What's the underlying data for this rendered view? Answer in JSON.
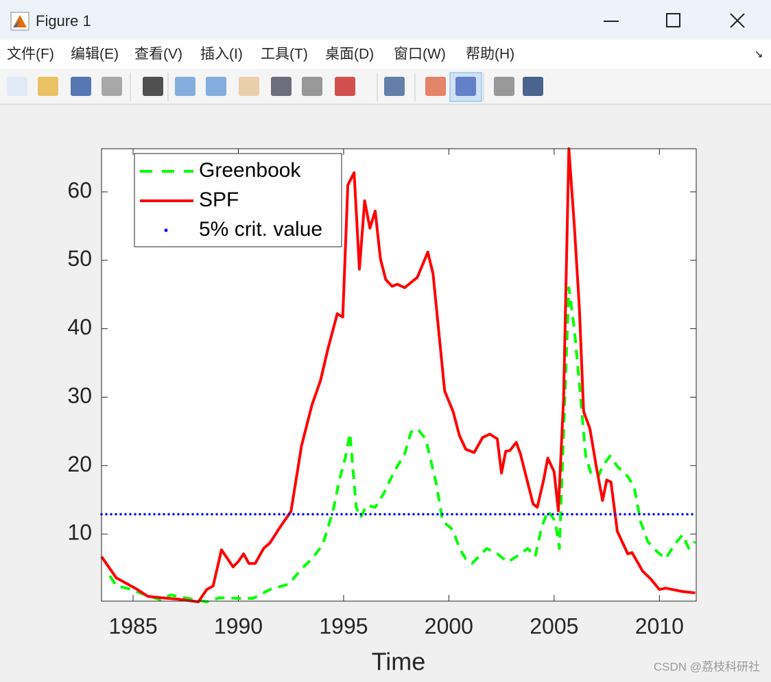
{
  "window": {
    "title": "Figure 1"
  },
  "menu": [
    "文件(F)",
    "编辑(E)",
    "查看(V)",
    "插入(I)",
    "工具(T)",
    "桌面(D)",
    "窗口(W)",
    "帮助(H)"
  ],
  "watermark": "CSDN @荔枝科研社",
  "chart_data": {
    "type": "line",
    "xlabel": "Time",
    "xlim": [
      1983.5,
      2011.75
    ],
    "ylim": [
      0.2,
      66.3
    ],
    "xticks": [
      1985,
      1990,
      1995,
      2000,
      2005,
      2010
    ],
    "yticks": [
      10,
      20,
      30,
      40,
      50,
      60
    ],
    "legend": "northwest",
    "series": [
      {
        "name": "Greenbook",
        "color": "#00ff00",
        "style": "dashed",
        "x": [
          1983.9,
          1984.2,
          1984.7,
          1985.5,
          1986.3,
          1986.8,
          1987.6,
          1988.5,
          1989.1,
          1990.1,
          1990.7,
          1991.5,
          1992.4,
          1993.0,
          1993.5,
          1994.0,
          1994.5,
          1994.8,
          1995.1,
          1995.3,
          1995.6,
          1995.8,
          1996.1,
          1996.5,
          1996.9,
          1997.4,
          1997.9,
          1998.2,
          1998.5,
          1998.9,
          1999.4,
          1999.7,
          2000.2,
          2000.5,
          2000.8,
          2001.1,
          2001.8,
          2002.3,
          2002.8,
          2003.4,
          2003.75,
          2004.1,
          2004.4,
          2004.7,
          2005.05,
          2005.25,
          2005.7,
          2005.96,
          2006.2,
          2006.5,
          2006.75,
          2007.1,
          2007.3,
          2007.65,
          2008.0,
          2008.5,
          2008.8,
          2009.1,
          2009.45,
          2009.9,
          2010.3,
          2010.7,
          2011.1,
          2011.4,
          2011.7
        ],
        "values": [
          3.9,
          2.4,
          2.1,
          1.2,
          0.4,
          1.1,
          0.6,
          0.1,
          0.7,
          0.6,
          0.6,
          1.9,
          2.7,
          4.9,
          6.4,
          8.4,
          13.4,
          17.9,
          21.4,
          24.7,
          13.9,
          12.4,
          14.2,
          13.9,
          15.9,
          19.1,
          21.7,
          24.9,
          25.4,
          23.9,
          17.4,
          11.9,
          10.6,
          7.9,
          6.4,
          5.7,
          7.9,
          7.1,
          5.9,
          7.1,
          7.9,
          6.7,
          10.9,
          13.4,
          11.9,
          7.9,
          46.0,
          40.0,
          31.9,
          21.4,
          18.9,
          18.4,
          19.9,
          21.4,
          19.9,
          18.4,
          16.9,
          11.9,
          8.9,
          7.4,
          6.4,
          8.4,
          9.9,
          7.9,
          8.9
        ]
      },
      {
        "name": "SPF",
        "color": "#ff0000",
        "style": "solid",
        "x": [
          1983.5,
          1984.2,
          1985.2,
          1985.7,
          1986.3,
          1987.1,
          1988.1,
          1988.5,
          1988.8,
          1989.2,
          1989.75,
          1990.0,
          1990.25,
          1990.5,
          1990.8,
          1991.2,
          1991.5,
          1992.0,
          1992.5,
          1993.0,
          1993.5,
          1993.9,
          1994.25,
          1994.7,
          1994.96,
          1995.2,
          1995.5,
          1995.75,
          1996.0,
          1996.25,
          1996.5,
          1996.75,
          1997.0,
          1997.3,
          1997.55,
          1997.9,
          1998.5,
          1999.0,
          1999.25,
          1999.8,
          2000.2,
          2000.5,
          2000.8,
          2001.2,
          2001.6,
          2001.95,
          2002.3,
          2002.5,
          2002.7,
          2002.9,
          2003.2,
          2003.4,
          2004.0,
          2004.2,
          2004.5,
          2004.7,
          2005.0,
          2005.2,
          2005.45,
          2005.7,
          2005.96,
          2006.2,
          2006.4,
          2006.7,
          2007.0,
          2007.3,
          2007.5,
          2007.7,
          2008.0,
          2008.5,
          2008.7,
          2009.2,
          2009.6,
          2010.0,
          2010.3,
          2011.1,
          2011.7
        ],
        "values": [
          6.7,
          3.6,
          1.9,
          0.9,
          0.7,
          0.5,
          0.1,
          1.9,
          2.4,
          7.7,
          5.2,
          6.0,
          7.1,
          5.7,
          5.7,
          7.9,
          8.7,
          11.1,
          13.3,
          22.9,
          28.9,
          32.4,
          37.0,
          42.2,
          41.7,
          61.0,
          62.8,
          48.7,
          58.7,
          54.7,
          57.2,
          50.2,
          47.2,
          46.2,
          46.5,
          46.0,
          47.5,
          51.2,
          48.0,
          30.9,
          27.9,
          24.4,
          22.4,
          21.9,
          24.1,
          24.6,
          23.9,
          18.9,
          22.1,
          22.2,
          23.4,
          21.7,
          14.4,
          13.9,
          17.9,
          21.1,
          19.1,
          13.4,
          29.9,
          66.3,
          55.0,
          43.0,
          27.9,
          25.4,
          19.9,
          14.9,
          17.9,
          17.6,
          10.4,
          7.1,
          7.3,
          4.6,
          3.4,
          1.9,
          2.1,
          1.6,
          1.4
        ]
      },
      {
        "name": "5% crit. value",
        "color": "#0000ff",
        "style": "dotted",
        "x": [
          1983.5,
          2011.75
        ],
        "values": [
          12.9,
          12.9
        ]
      }
    ]
  }
}
